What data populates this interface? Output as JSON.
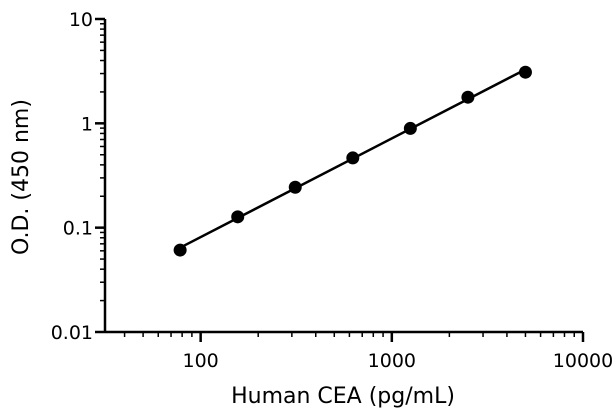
{
  "chart_data": {
    "type": "scatter",
    "title": "",
    "xlabel": "Human CEA (pg/mL)",
    "ylabel": "O.D. (450 nm)",
    "xscale": "log",
    "yscale": "log",
    "xlim": [
      31.6,
      10000
    ],
    "ylim": [
      0.01,
      10
    ],
    "xticks": [
      100,
      1000,
      10000
    ],
    "xtick_labels": [
      "100",
      "1000",
      "10000"
    ],
    "yticks": [
      0.01,
      0.1,
      1,
      10
    ],
    "ytick_labels": [
      "0.01",
      "0.1",
      "1",
      "10"
    ],
    "grid": false,
    "legend": "none",
    "fit_line": true,
    "x": [
      78.1,
      156.3,
      312.5,
      625,
      1250,
      2500,
      5000
    ],
    "y": [
      0.061,
      0.127,
      0.244,
      0.466,
      0.894,
      1.78,
      3.09
    ],
    "colors": {
      "points": "#000000",
      "line": "#000000",
      "axes": "#000000"
    }
  }
}
